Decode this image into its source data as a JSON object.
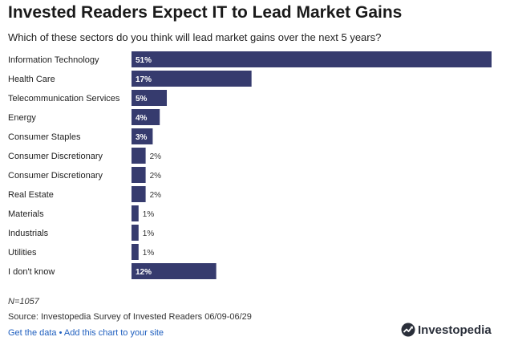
{
  "title": "Invested Readers Expect IT to Lead Market Gains",
  "subtitle": "Which of these sectors do you think will lead market gains over the next 5 years?",
  "colors": {
    "bar": "#363b6e",
    "label_inside": "#ffffff",
    "label_outside": "#333333"
  },
  "chart_data": {
    "type": "bar",
    "orientation": "horizontal",
    "title": "Invested Readers Expect IT to Lead Market Gains",
    "categories": [
      "Information Technology",
      "Health Care",
      "Telecommunication Services",
      "Energy",
      "Consumer Staples",
      "Consumer Discretionary",
      "Consumer Discretionary",
      "Real Estate",
      "Materials",
      "Industrials",
      "Utilities",
      "I don't know"
    ],
    "values": [
      51,
      17,
      5,
      4,
      3,
      2,
      2,
      2,
      1,
      1,
      1,
      12
    ],
    "labels": [
      "51%",
      "17%",
      "5%",
      "4%",
      "3%",
      "2%",
      "2%",
      "2%",
      "1%",
      "1%",
      "1%",
      "12%"
    ],
    "unit": "%",
    "xlim": [
      0,
      51
    ]
  },
  "footer": {
    "n": "N=1057",
    "source": "Source: Investopedia Survey of Invested Readers 06/09-06/29",
    "get_data": "Get the data",
    "separator": "•",
    "add_chart": "Add this chart to your site"
  },
  "brand": {
    "name": "Investopedia",
    "logo_icon": "investopedia-logo-icon"
  }
}
